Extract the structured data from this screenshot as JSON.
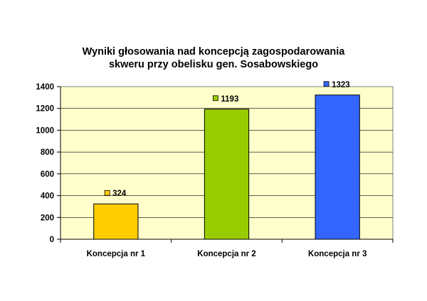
{
  "chart_data": {
    "type": "bar",
    "title": "Wyniki głosowania nad koncepcją zagospodarowania",
    "subtitle": "skweru przy obelisku gen. Sosabowskiego",
    "categories": [
      "Koncepcja nr 1",
      "Koncepcja nr 2",
      "Koncepcja nr 3"
    ],
    "values": [
      324,
      1193,
      1323
    ],
    "data_labels": [
      "324",
      "1193",
      "1323"
    ],
    "bar_colors": [
      "#ffcc00",
      "#99cc00",
      "#3366ff"
    ],
    "ylim": [
      0,
      1400
    ],
    "yticks": [
      0,
      200,
      400,
      600,
      800,
      1000,
      1200,
      1400
    ],
    "ytick_labels": [
      "0",
      "200",
      "400",
      "600",
      "800",
      "1000",
      "1200",
      "1400"
    ],
    "grid": true,
    "plot_background": "#ffffcc",
    "xlabel": "",
    "ylabel": ""
  }
}
